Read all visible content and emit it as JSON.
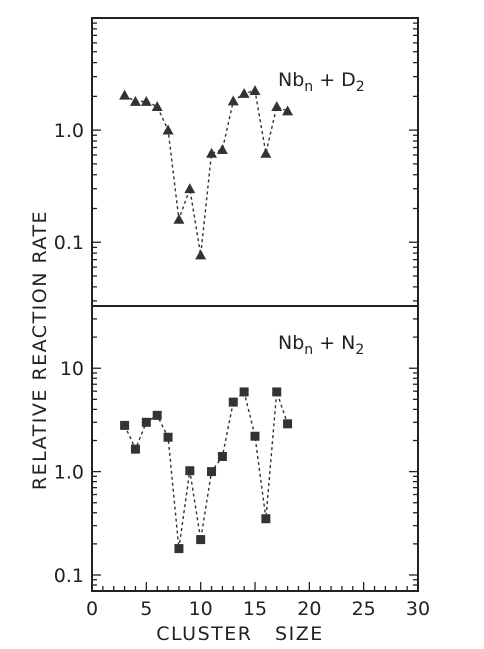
{
  "chart_data": {
    "ylabel": "RELATIVE   REACTION   RATE",
    "xlabel": "CLUSTER   SIZE",
    "xlim": [
      0,
      30
    ],
    "x_ticks": [
      0,
      5,
      10,
      15,
      20,
      25,
      30
    ],
    "x_tick_labels": [
      "0",
      "5",
      "10",
      "15",
      "20",
      "25",
      "30"
    ],
    "panels": [
      {
        "type": "scatter",
        "y_scale": "log",
        "ylim": [
          0.027,
          10
        ],
        "y_ticks": [
          0.1,
          1.0
        ],
        "y_tick_labels": [
          "0.1",
          "1.0"
        ],
        "annotation": {
          "main": "Nb",
          "sub1": "n",
          "mid": " + D",
          "sub2": "2"
        },
        "marker": "triangle",
        "x": [
          3,
          4,
          5,
          6,
          7,
          8,
          9,
          10,
          11,
          12,
          13,
          14,
          15,
          16,
          17,
          18
        ],
        "y": [
          2.05,
          1.8,
          1.8,
          1.62,
          1.0,
          0.16,
          0.3,
          0.077,
          0.62,
          0.67,
          1.82,
          2.12,
          2.25,
          0.62,
          1.62,
          1.48
        ]
      },
      {
        "type": "scatter",
        "y_scale": "log",
        "ylim": [
          0.07,
          40
        ],
        "y_ticks": [
          0.1,
          1.0,
          10
        ],
        "y_tick_labels": [
          "0.1",
          "1.0",
          "10"
        ],
        "annotation": {
          "main": "Nb",
          "sub1": "n",
          "mid": " + N",
          "sub2": "2"
        },
        "marker": "square",
        "x": [
          3,
          4,
          5,
          6,
          7,
          8,
          9,
          10,
          11,
          12,
          13,
          14,
          15,
          16,
          17,
          18
        ],
        "y": [
          2.8,
          1.65,
          3.0,
          3.5,
          2.15,
          0.18,
          1.02,
          0.22,
          1.0,
          1.4,
          4.7,
          5.9,
          2.2,
          0.35,
          5.9,
          2.9
        ]
      }
    ]
  }
}
